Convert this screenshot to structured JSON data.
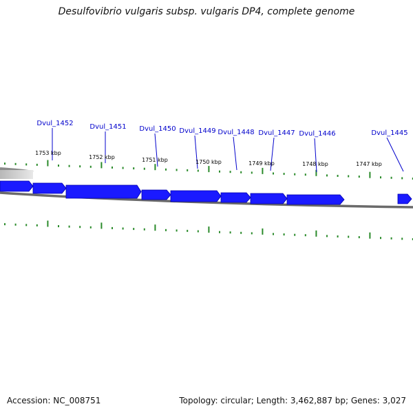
{
  "title": "Desulfovibrio vulgaris subsp. vulgaris DP4, complete genome",
  "footer": {
    "accession": "Accession: NC_008751",
    "stats": "Topology: circular; Length: 3,462,887 bp; Genes: 3,027"
  },
  "colors": {
    "gene": "#1a1aff",
    "gene_dark": "#0000aa",
    "backbone": "#707070",
    "tick": "#2a8a2a",
    "label": "#0000cc"
  },
  "genes": [
    {
      "name": "Dvul_1452"
    },
    {
      "name": "Dvul_1451"
    },
    {
      "name": "Dvul_1450"
    },
    {
      "name": "Dvul_1449"
    },
    {
      "name": "Dvul_1448"
    },
    {
      "name": "Dvul_1447"
    },
    {
      "name": "Dvul_1446"
    },
    {
      "name": "Dvul_1445"
    }
  ],
  "kbp_labels": [
    "1753 kbp",
    "1752 kbp",
    "1751 kbp",
    "1750 kbp",
    "1749 kbp",
    "1748 kbp",
    "1747 kbp"
  ]
}
